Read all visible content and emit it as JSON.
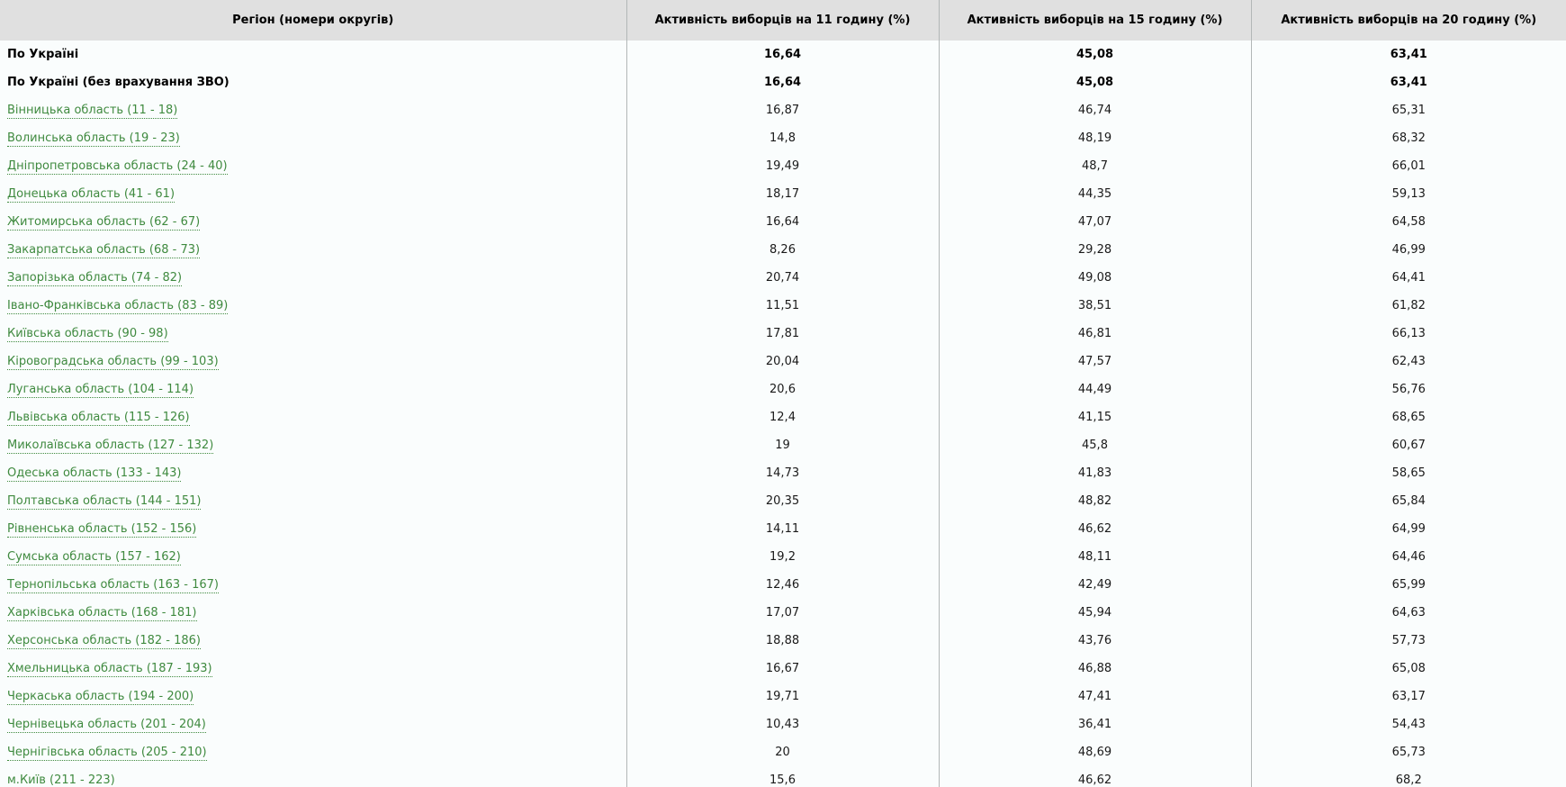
{
  "table": {
    "headers": [
      "Регіон (номери округів)",
      "Активність виборців на 11 годину (%)",
      "Активність виборців на 15 годину (%)",
      "Активність виборців на 20 годину (%)"
    ],
    "rows": [
      {
        "region": "По Україні",
        "link": false,
        "bold": true,
        "v11": "16,64",
        "v15": "45,08",
        "v20": "63,41"
      },
      {
        "region": "По Україні (без врахування ЗВО)",
        "link": false,
        "bold": true,
        "v11": "16,64",
        "v15": "45,08",
        "v20": "63,41"
      },
      {
        "region": "Вінницька область (11 - 18)",
        "link": true,
        "bold": false,
        "v11": "16,87",
        "v15": "46,74",
        "v20": "65,31"
      },
      {
        "region": "Волинська область (19 - 23)",
        "link": true,
        "bold": false,
        "v11": "14,8",
        "v15": "48,19",
        "v20": "68,32"
      },
      {
        "region": "Дніпропетровська область (24 - 40)",
        "link": true,
        "bold": false,
        "v11": "19,49",
        "v15": "48,7",
        "v20": "66,01"
      },
      {
        "region": "Донецька область (41 - 61)",
        "link": true,
        "bold": false,
        "v11": "18,17",
        "v15": "44,35",
        "v20": "59,13"
      },
      {
        "region": "Житомирська область (62 - 67)",
        "link": true,
        "bold": false,
        "v11": "16,64",
        "v15": "47,07",
        "v20": "64,58"
      },
      {
        "region": "Закарпатська область (68 - 73)",
        "link": true,
        "bold": false,
        "v11": "8,26",
        "v15": "29,28",
        "v20": "46,99"
      },
      {
        "region": "Запорізька область (74 - 82)",
        "link": true,
        "bold": false,
        "v11": "20,74",
        "v15": "49,08",
        "v20": "64,41"
      },
      {
        "region": "Івано-Франківська область (83 - 89)",
        "link": true,
        "bold": false,
        "v11": "11,51",
        "v15": "38,51",
        "v20": "61,82"
      },
      {
        "region": "Київська область (90 - 98)",
        "link": true,
        "bold": false,
        "v11": "17,81",
        "v15": "46,81",
        "v20": "66,13"
      },
      {
        "region": "Кіровоградська область (99 - 103)",
        "link": true,
        "bold": false,
        "v11": "20,04",
        "v15": "47,57",
        "v20": "62,43"
      },
      {
        "region": "Луганська область (104 - 114)",
        "link": true,
        "bold": false,
        "v11": "20,6",
        "v15": "44,49",
        "v20": "56,76"
      },
      {
        "region": "Львівська область (115 - 126)",
        "link": true,
        "bold": false,
        "v11": "12,4",
        "v15": "41,15",
        "v20": "68,65"
      },
      {
        "region": "Миколаївська область (127 - 132)",
        "link": true,
        "bold": false,
        "v11": "19",
        "v15": "45,8",
        "v20": "60,67"
      },
      {
        "region": "Одеська область (133 - 143)",
        "link": true,
        "bold": false,
        "v11": "14,73",
        "v15": "41,83",
        "v20": "58,65"
      },
      {
        "region": "Полтавська область (144 - 151)",
        "link": true,
        "bold": false,
        "v11": "20,35",
        "v15": "48,82",
        "v20": "65,84"
      },
      {
        "region": "Рівненська область (152 - 156)",
        "link": true,
        "bold": false,
        "v11": "14,11",
        "v15": "46,62",
        "v20": "64,99"
      },
      {
        "region": "Сумська область (157 - 162)",
        "link": true,
        "bold": false,
        "v11": "19,2",
        "v15": "48,11",
        "v20": "64,46"
      },
      {
        "region": "Тернопільська область (163 - 167)",
        "link": true,
        "bold": false,
        "v11": "12,46",
        "v15": "42,49",
        "v20": "65,99"
      },
      {
        "region": "Харківська область (168 - 181)",
        "link": true,
        "bold": false,
        "v11": "17,07",
        "v15": "45,94",
        "v20": "64,63"
      },
      {
        "region": "Херсонська область (182 - 186)",
        "link": true,
        "bold": false,
        "v11": "18,88",
        "v15": "43,76",
        "v20": "57,73"
      },
      {
        "region": "Хмельницька область (187 - 193)",
        "link": true,
        "bold": false,
        "v11": "16,67",
        "v15": "46,88",
        "v20": "65,08"
      },
      {
        "region": "Черкаська область (194 - 200)",
        "link": true,
        "bold": false,
        "v11": "19,71",
        "v15": "47,41",
        "v20": "63,17"
      },
      {
        "region": "Чернівецька область (201 - 204)",
        "link": true,
        "bold": false,
        "v11": "10,43",
        "v15": "36,41",
        "v20": "54,43"
      },
      {
        "region": "Чернігівська область (205 - 210)",
        "link": true,
        "bold": false,
        "v11": "20",
        "v15": "48,69",
        "v20": "65,73"
      },
      {
        "region": "м.Київ (211 - 223)",
        "link": true,
        "bold": false,
        "v11": "15,6",
        "v15": "46,62",
        "v20": "68,2"
      }
    ]
  },
  "colors": {
    "header_bg": "#e0e0e0",
    "row_bg": "#fafdfd",
    "link_green": "#3f8a3f",
    "column_divider": "#b2b7b7",
    "value_text": "#1a1a1a"
  }
}
